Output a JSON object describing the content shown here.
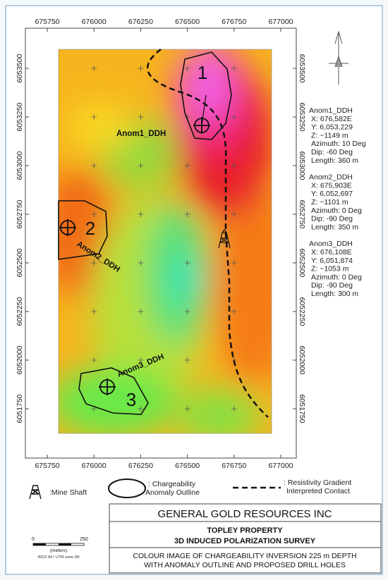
{
  "map": {
    "xticks": [
      675750,
      676000,
      676250,
      676500,
      676750,
      677000
    ],
    "yticks": [
      6053500,
      6053250,
      6053000,
      6052750,
      6052500,
      6052250,
      6052000,
      6051750
    ],
    "drill_holes": [
      {
        "number": "1",
        "name": "Anom1_DDH",
        "lines": [
          "X: 676,582E",
          "Y: 6,053,229",
          "Z: ~1149 m",
          "Azimuth: 10 Deg",
          "Dip: -60 Deg",
          "Length: 360 m"
        ]
      },
      {
        "number": "2",
        "name": "Anom2_DDH",
        "lines": [
          "X: 675,903E",
          "Y: 6,052,697",
          "Z: ~1101 m",
          "Azimuth: 0 Deg",
          "Dip: -90 Deg",
          "Length: 350 m"
        ]
      },
      {
        "number": "3",
        "name": "Anom3_DDH",
        "lines": [
          "X: 676,108E",
          "Y: 6,051,874",
          "Z: ~1053 m",
          "Azimuth: 0 Deg",
          "Dip: -90 Deg",
          "Length: 300 m"
        ]
      }
    ],
    "legend": {
      "mine_shaft": ":Mine Shaft",
      "anomaly": [
        ": Chargeability",
        "Anomaly Outline"
      ],
      "contact": [
        ": Resistivity Gradient",
        "Interpreted Contact"
      ]
    },
    "scale": {
      "zero": "0",
      "end": "250",
      "unit": "(meters)",
      "datum": "WGS 84 / UTM zone 9N"
    },
    "title_block": {
      "company": "GENERAL GOLD RESOURCES INC",
      "property": "TOPLEY PROPERTY",
      "survey": "3D INDUCED POLARIZATION SURVEY",
      "description": [
        "COLOUR IMAGE OF CHARGEABILITY INVERSION 225 m DEPTH",
        "WITH ANOMALY OUTLINE AND PROPOSED DRILL HOLES"
      ]
    }
  }
}
